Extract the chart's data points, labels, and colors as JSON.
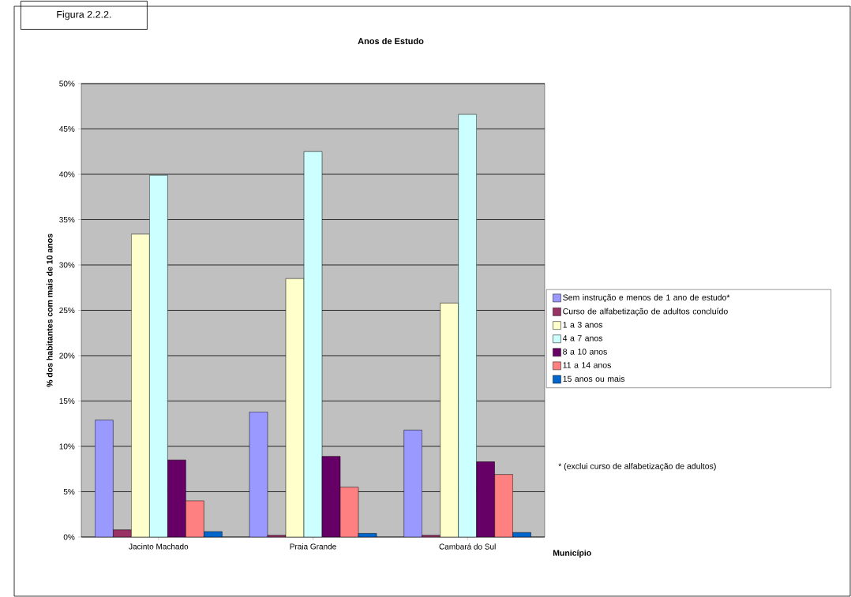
{
  "chart_data": {
    "type": "bar",
    "title": "Anos de Estudo",
    "xlabel": "Município",
    "ylabel": "% dos habitantes com mais de 10 anos",
    "annotations": [
      "Figura 2.2.2.",
      "* (exclui curso de alfabetização de adultos)"
    ],
    "categories": [
      "Jacinto Machado",
      "Praia Grande",
      "Cambará do Sul"
    ],
    "series": [
      {
        "name": "Sem instrução e menos de 1 ano de estudo*",
        "color": "#9999ff",
        "values": [
          12.9,
          13.8,
          11.8
        ]
      },
      {
        "name": "Curso de alfabetização de adultos concluído",
        "color": "#993366",
        "values": [
          0.8,
          0.2,
          0.2
        ]
      },
      {
        "name": "1 a 3 anos",
        "color": "#ffffcc",
        "values": [
          33.4,
          28.5,
          25.8
        ]
      },
      {
        "name": "4 a 7 anos",
        "color": "#ccffff",
        "values": [
          39.9,
          42.5,
          46.6
        ]
      },
      {
        "name": "8 a 10 anos",
        "color": "#660066",
        "values": [
          8.5,
          8.9,
          8.3
        ]
      },
      {
        "name": "11 a 14 anos",
        "color": "#ff8080",
        "values": [
          4.0,
          5.5,
          6.9
        ]
      },
      {
        "name": "15 anos ou mais",
        "color": "#0066cc",
        "values": [
          0.6,
          0.4,
          0.5
        ]
      }
    ],
    "ylim": [
      0,
      50
    ],
    "yticks": [
      {
        "value": 0,
        "label": "0%"
      },
      {
        "value": 5,
        "label": "5%"
      },
      {
        "value": 10,
        "label": "10%"
      },
      {
        "value": 15,
        "label": "15%"
      },
      {
        "value": 20,
        "label": "20%"
      },
      {
        "value": 25,
        "label": "25%"
      },
      {
        "value": 30,
        "label": "30%"
      },
      {
        "value": 35,
        "label": "35%"
      },
      {
        "value": 40,
        "label": "40%"
      },
      {
        "value": 45,
        "label": "45%"
      },
      {
        "value": 50,
        "label": "50%"
      }
    ],
    "grid": "y",
    "legend": "right"
  }
}
